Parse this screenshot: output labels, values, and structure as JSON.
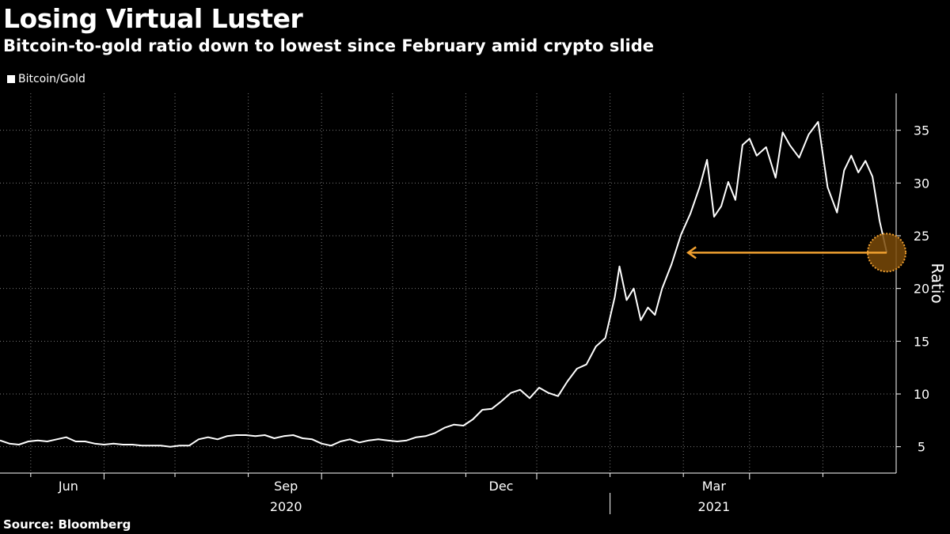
{
  "title": "Losing Virtual Luster",
  "subtitle": "Bitcoin-to-gold ratio down to lowest since February amid crypto slide",
  "source": "Source: Bloomberg",
  "colors": {
    "background": "#000000",
    "line": "#ffffff",
    "grid": "#7a7a7a",
    "highlight": "#f0a030",
    "highlight_fill": "#7a4a08"
  },
  "chart_data": {
    "type": "line",
    "ylabel": "Ratio",
    "ylim": [
      2.5,
      38.5
    ],
    "yticks": [
      5,
      10,
      15,
      20,
      25,
      30,
      35
    ],
    "xlim": [
      "2020-04-18",
      "2021-05-02"
    ],
    "x_major_ticks": [
      "2020-06-01",
      "2020-09-01",
      "2020-12-01",
      "2021-03-01"
    ],
    "x_minor_ticks": [
      "2020-05-01",
      "2020-07-01",
      "2020-08-01",
      "2020-10-01",
      "2020-11-01",
      "2021-01-01",
      "2021-02-01",
      "2021-04-01"
    ],
    "x_tick_labels": [
      "Jun",
      "Sep",
      "Dec",
      "Mar"
    ],
    "year_labels": [
      {
        "label": "2020",
        "at": "2020-09-01"
      },
      {
        "label": "2021",
        "at": "2021-03-01"
      }
    ],
    "year_separator": "2021-01-01",
    "grid": true,
    "legend": "top-left",
    "series": [
      {
        "name": "Bitcoin/Gold",
        "x": [
          "2020-04-18",
          "2020-04-22",
          "2020-04-26",
          "2020-04-30",
          "2020-05-04",
          "2020-05-08",
          "2020-05-12",
          "2020-05-16",
          "2020-05-20",
          "2020-05-24",
          "2020-05-28",
          "2020-06-01",
          "2020-06-05",
          "2020-06-09",
          "2020-06-13",
          "2020-06-17",
          "2020-06-21",
          "2020-06-25",
          "2020-06-29",
          "2020-07-03",
          "2020-07-07",
          "2020-07-11",
          "2020-07-15",
          "2020-07-19",
          "2020-07-23",
          "2020-07-27",
          "2020-07-31",
          "2020-08-04",
          "2020-08-08",
          "2020-08-12",
          "2020-08-16",
          "2020-08-20",
          "2020-08-24",
          "2020-08-28",
          "2020-09-01",
          "2020-09-05",
          "2020-09-09",
          "2020-09-13",
          "2020-09-17",
          "2020-09-21",
          "2020-09-25",
          "2020-09-29",
          "2020-10-03",
          "2020-10-07",
          "2020-10-11",
          "2020-10-15",
          "2020-10-19",
          "2020-10-23",
          "2020-10-27",
          "2020-10-31",
          "2020-11-04",
          "2020-11-08",
          "2020-11-12",
          "2020-11-16",
          "2020-11-20",
          "2020-11-24",
          "2020-11-28",
          "2020-12-02",
          "2020-12-06",
          "2020-12-10",
          "2020-12-14",
          "2020-12-18",
          "2020-12-22",
          "2020-12-26",
          "2020-12-30",
          "2021-01-03",
          "2021-01-05",
          "2021-01-08",
          "2021-01-11",
          "2021-01-14",
          "2021-01-17",
          "2021-01-20",
          "2021-01-23",
          "2021-01-27",
          "2021-01-31",
          "2021-02-04",
          "2021-02-08",
          "2021-02-11",
          "2021-02-14",
          "2021-02-17",
          "2021-02-20",
          "2021-02-23",
          "2021-02-26",
          "2021-03-01",
          "2021-03-04",
          "2021-03-08",
          "2021-03-12",
          "2021-03-15",
          "2021-03-18",
          "2021-03-22",
          "2021-03-26",
          "2021-03-30",
          "2021-04-03",
          "2021-04-07",
          "2021-04-10",
          "2021-04-13",
          "2021-04-16",
          "2021-04-19",
          "2021-04-22",
          "2021-04-25",
          "2021-04-28"
        ],
        "y": [
          5.6,
          5.3,
          5.2,
          5.5,
          5.6,
          5.5,
          5.7,
          5.9,
          5.5,
          5.5,
          5.3,
          5.2,
          5.3,
          5.2,
          5.2,
          5.1,
          5.1,
          5.1,
          5.0,
          5.1,
          5.1,
          5.7,
          5.9,
          5.7,
          6.0,
          6.1,
          6.1,
          6.0,
          6.1,
          5.8,
          6.0,
          6.1,
          5.8,
          5.7,
          5.3,
          5.1,
          5.5,
          5.7,
          5.4,
          5.6,
          5.7,
          5.6,
          5.5,
          5.6,
          5.9,
          6.0,
          6.3,
          6.8,
          7.1,
          7.0,
          7.6,
          8.5,
          8.6,
          9.3,
          10.1,
          10.4,
          9.6,
          10.6,
          10.1,
          9.8,
          11.2,
          12.4,
          12.8,
          14.5,
          15.3,
          19.2,
          22.1,
          18.9,
          20.0,
          17.0,
          18.2,
          17.5,
          20.0,
          22.3,
          25.1,
          27.1,
          29.7,
          32.2,
          26.8,
          27.8,
          30.1,
          28.4,
          33.6,
          34.2,
          32.6,
          33.4,
          30.5,
          34.8,
          33.6,
          32.4,
          34.6,
          35.8,
          29.6,
          27.2,
          31.2,
          32.6,
          31.0,
          32.1,
          30.6,
          26.4,
          23.4
        ]
      }
    ],
    "annotations": [
      {
        "type": "arrow",
        "from": [
          "2021-04-28",
          23.4
        ],
        "to": [
          "2021-02-03",
          23.4
        ]
      },
      {
        "type": "circle",
        "at": [
          "2021-04-28",
          23.4
        ]
      }
    ]
  }
}
